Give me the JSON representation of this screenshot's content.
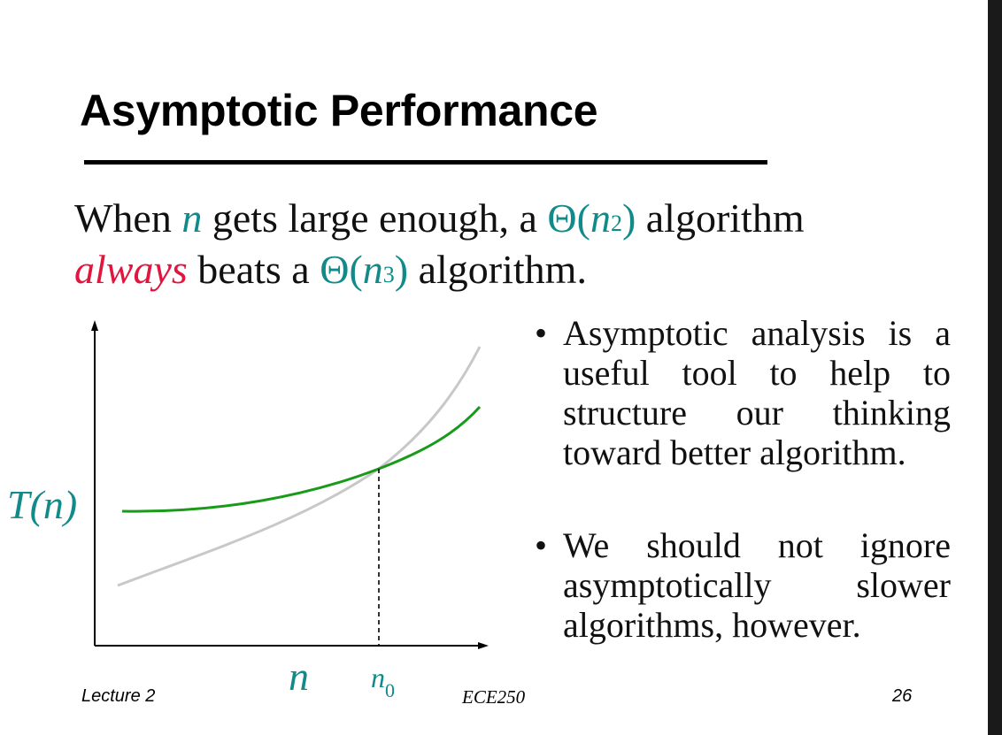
{
  "slide": {
    "title": "Asymptotic Performance",
    "statement": {
      "part1": "When ",
      "var_n": "n",
      "part2": " gets large enough, a ",
      "theta1_open": "Θ(",
      "theta1_var": "n",
      "theta1_exp": "2",
      "theta1_close": ")",
      "part3": " algorithm",
      "emphasis": "always",
      "part4": " beats a ",
      "theta2_open": "Θ(",
      "theta2_var": "n",
      "theta2_exp": "3",
      "theta2_close": ")",
      "part5": " algorithm."
    },
    "graph": {
      "y_label": "T(n)",
      "x_label": "n",
      "crossover_label": "n",
      "crossover_subscript": "0",
      "colors": {
        "n2_curve": "#1a9a1a",
        "n3_curve": "#c8c8c8",
        "axes": "#000000",
        "labels": "#128a8a"
      }
    },
    "bullets": [
      {
        "marker": "•",
        "text": "Asymptotic analysis is a useful tool to help to structure our thinking toward better algorithm."
      },
      {
        "marker": "•",
        "text": "We should not ignore asymptotically slower algorithms, however."
      }
    ],
    "footer": {
      "left": "Lecture 2",
      "center": "ECE250",
      "right": "26"
    }
  }
}
